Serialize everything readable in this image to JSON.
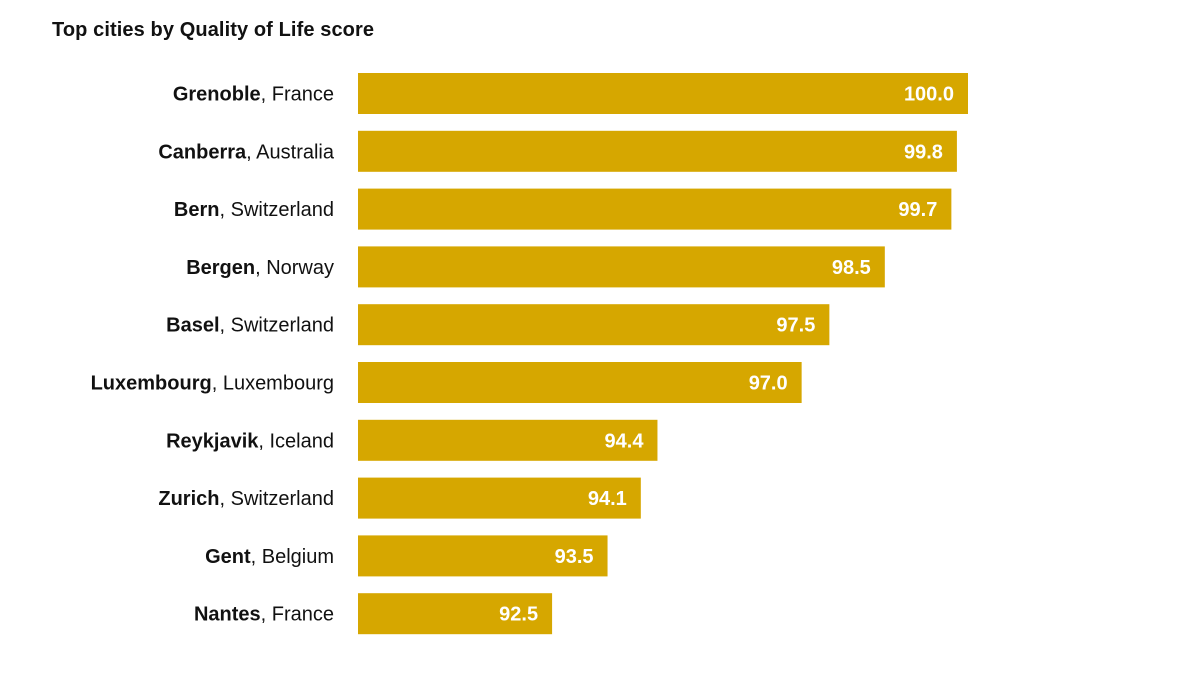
{
  "chart_data": {
    "type": "bar",
    "orientation": "horizontal",
    "title": "Top cities by Quality of Life score",
    "xlabel": "",
    "ylabel": "",
    "grid": false,
    "bar_color": "#D6A700",
    "label_color": "#FFFFFF",
    "xlim": [
      89.0,
      100.0
    ],
    "categories": [
      {
        "city": "Grenoble",
        "country": "France"
      },
      {
        "city": "Canberra",
        "country": "Australia"
      },
      {
        "city": "Bern",
        "country": "Switzerland"
      },
      {
        "city": "Bergen",
        "country": "Norway"
      },
      {
        "city": "Basel",
        "country": "Switzerland"
      },
      {
        "city": "Luxembourg",
        "country": "Luxembourg"
      },
      {
        "city": "Reykjavik",
        "country": "Iceland"
      },
      {
        "city": "Zurich",
        "country": "Switzerland"
      },
      {
        "city": "Gent",
        "country": "Belgium"
      },
      {
        "city": "Nantes",
        "country": "France"
      }
    ],
    "values": [
      100.0,
      99.8,
      99.7,
      98.5,
      97.5,
      97.0,
      94.4,
      94.1,
      93.5,
      92.5
    ],
    "value_labels": [
      "100.0",
      "99.8",
      "99.7",
      "98.5",
      "97.5",
      "97.0",
      "94.4",
      "94.1",
      "93.5",
      "92.5"
    ]
  }
}
